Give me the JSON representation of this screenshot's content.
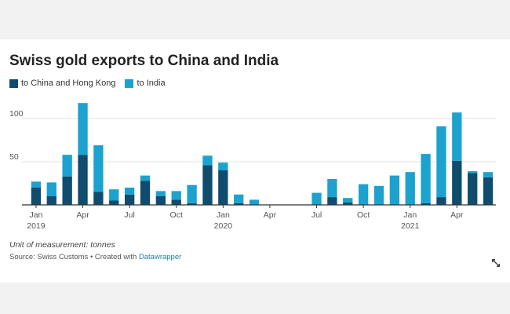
{
  "title": "Swiss gold exports to China and India",
  "legend": {
    "series1": "to China and Hong Kong",
    "series2": "to India"
  },
  "colors": {
    "china": "#0f4c6e",
    "india": "#1ca2cf",
    "grid": "#e3e3e3",
    "axis": "#333333",
    "tick_text": "#555555"
  },
  "note": "Unit of measurement: tonnes",
  "source_prefix": "Source: Swiss Customs • Created with ",
  "source_link": "Datawrapper",
  "chart_data": {
    "type": "bar",
    "stacked": true,
    "title": "Swiss gold exports to China and India",
    "unit": "tonnes",
    "ylim": [
      0,
      130
    ],
    "yticks": [
      50,
      100
    ],
    "gridlines": true,
    "legend_position": "top-left",
    "categories": [
      "Jan 2019",
      "Feb 2019",
      "Mar 2019",
      "Apr 2019",
      "May 2019",
      "Jun 2019",
      "Jul 2019",
      "Aug 2019",
      "Sep 2019",
      "Oct 2019",
      "Nov 2019",
      "Dec 2019",
      "Jan 2020",
      "Feb 2020",
      "Mar 2020",
      "Apr 2020",
      "May 2020",
      "Jun 2020",
      "Jul 2020",
      "Aug 2020",
      "Sep 2020",
      "Oct 2020",
      "Nov 2020",
      "Dec 2020",
      "Jan 2021",
      "Feb 2021",
      "Mar 2021",
      "Apr 2021",
      "May 2021",
      "Jun 2021"
    ],
    "series": [
      {
        "name": "to China and Hong Kong",
        "values": [
          20,
          10,
          33,
          58,
          15,
          5,
          12,
          28,
          10,
          6,
          2,
          46,
          40,
          2,
          0,
          0,
          0,
          0,
          0,
          9,
          3,
          0,
          0,
          0,
          0,
          2,
          9,
          51,
          37,
          32
        ]
      },
      {
        "name": "to India",
        "values": [
          7,
          16,
          25,
          60,
          54,
          13,
          8,
          6,
          6,
          10,
          21,
          11,
          9,
          10,
          6,
          0,
          0,
          0,
          14,
          21,
          5,
          24,
          22,
          34,
          38,
          57,
          82,
          56,
          2,
          6
        ]
      }
    ],
    "x_ticks": [
      {
        "label": "Jan",
        "year": "2019"
      },
      {
        "label": "Apr",
        "year": ""
      },
      {
        "label": "Jul",
        "year": ""
      },
      {
        "label": "Oct",
        "year": ""
      },
      {
        "label": "Jan",
        "year": "2020"
      },
      {
        "label": "Apr",
        "year": ""
      },
      {
        "label": "Jul",
        "year": ""
      },
      {
        "label": "Oct",
        "year": ""
      },
      {
        "label": "Jan",
        "year": "2021"
      },
      {
        "label": "Apr",
        "year": ""
      }
    ]
  }
}
